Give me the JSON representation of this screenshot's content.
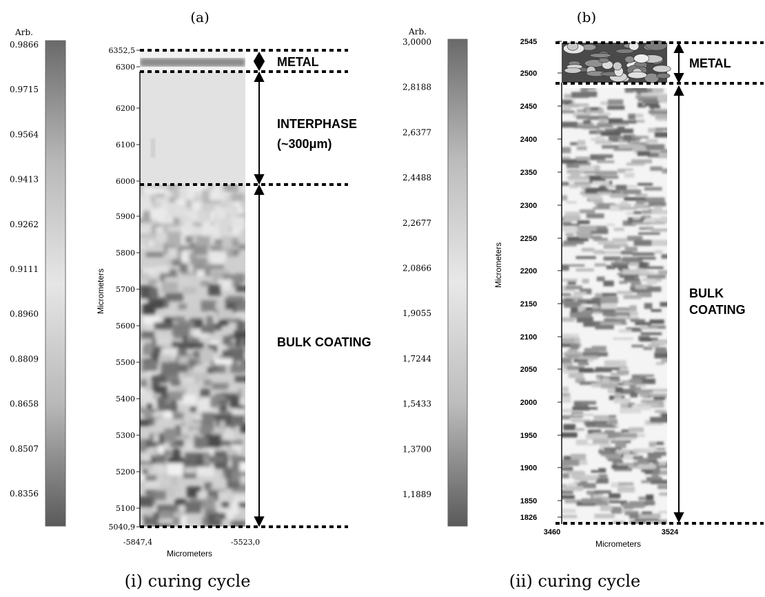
{
  "panel_a": {
    "label": "(a)",
    "caption": "(i) curing cycle",
    "colorbar": {
      "unit": "Arb.",
      "ticks": [
        "0.9866",
        "0.9715",
        "0.9564",
        "0.9413",
        "0.9262",
        "0.9111",
        "0.8960",
        "0.8809",
        "0.8658",
        "0.8507",
        "0.8356"
      ]
    },
    "y_axis": {
      "title": "Micrometers",
      "ticks": [
        "6352,5",
        "6300",
        "6200",
        "6100",
        "6000",
        "5900",
        "5800",
        "5700",
        "5600",
        "5500",
        "5400",
        "5300",
        "5200",
        "5100",
        "5040,9"
      ]
    },
    "x_axis": {
      "title": "Micrometers",
      "ticks": [
        "-5847,4",
        "-5523,0"
      ]
    },
    "annotations": {
      "metal": "METAL",
      "interphase": "INTERPHASE",
      "interphase_sub": "(~300μm)",
      "bulk": "BULK COATING"
    }
  },
  "panel_b": {
    "label": "(b)",
    "caption": "(ii) curing cycle",
    "colorbar": {
      "unit": "Arb.",
      "ticks": [
        "3,0000",
        "2,8188",
        "2,6377",
        "2,4488",
        "2,2677",
        "2,0866",
        "1,9055",
        "1,7244",
        "1,5433",
        "1,3700",
        "1,1889"
      ]
    },
    "y_axis": {
      "title": "Micrometers",
      "ticks": [
        "2545",
        "2500",
        "2450",
        "2400",
        "2350",
        "2300",
        "2250",
        "2200",
        "2150",
        "2100",
        "2050",
        "2000",
        "1950",
        "1900",
        "1850",
        "1826"
      ]
    },
    "x_axis": {
      "title": "Micrometers",
      "ticks": [
        "3460",
        "3524"
      ]
    },
    "annotations": {
      "metal": "METAL",
      "bulk_line1": "BULK",
      "bulk_line2": "COATING"
    }
  }
}
